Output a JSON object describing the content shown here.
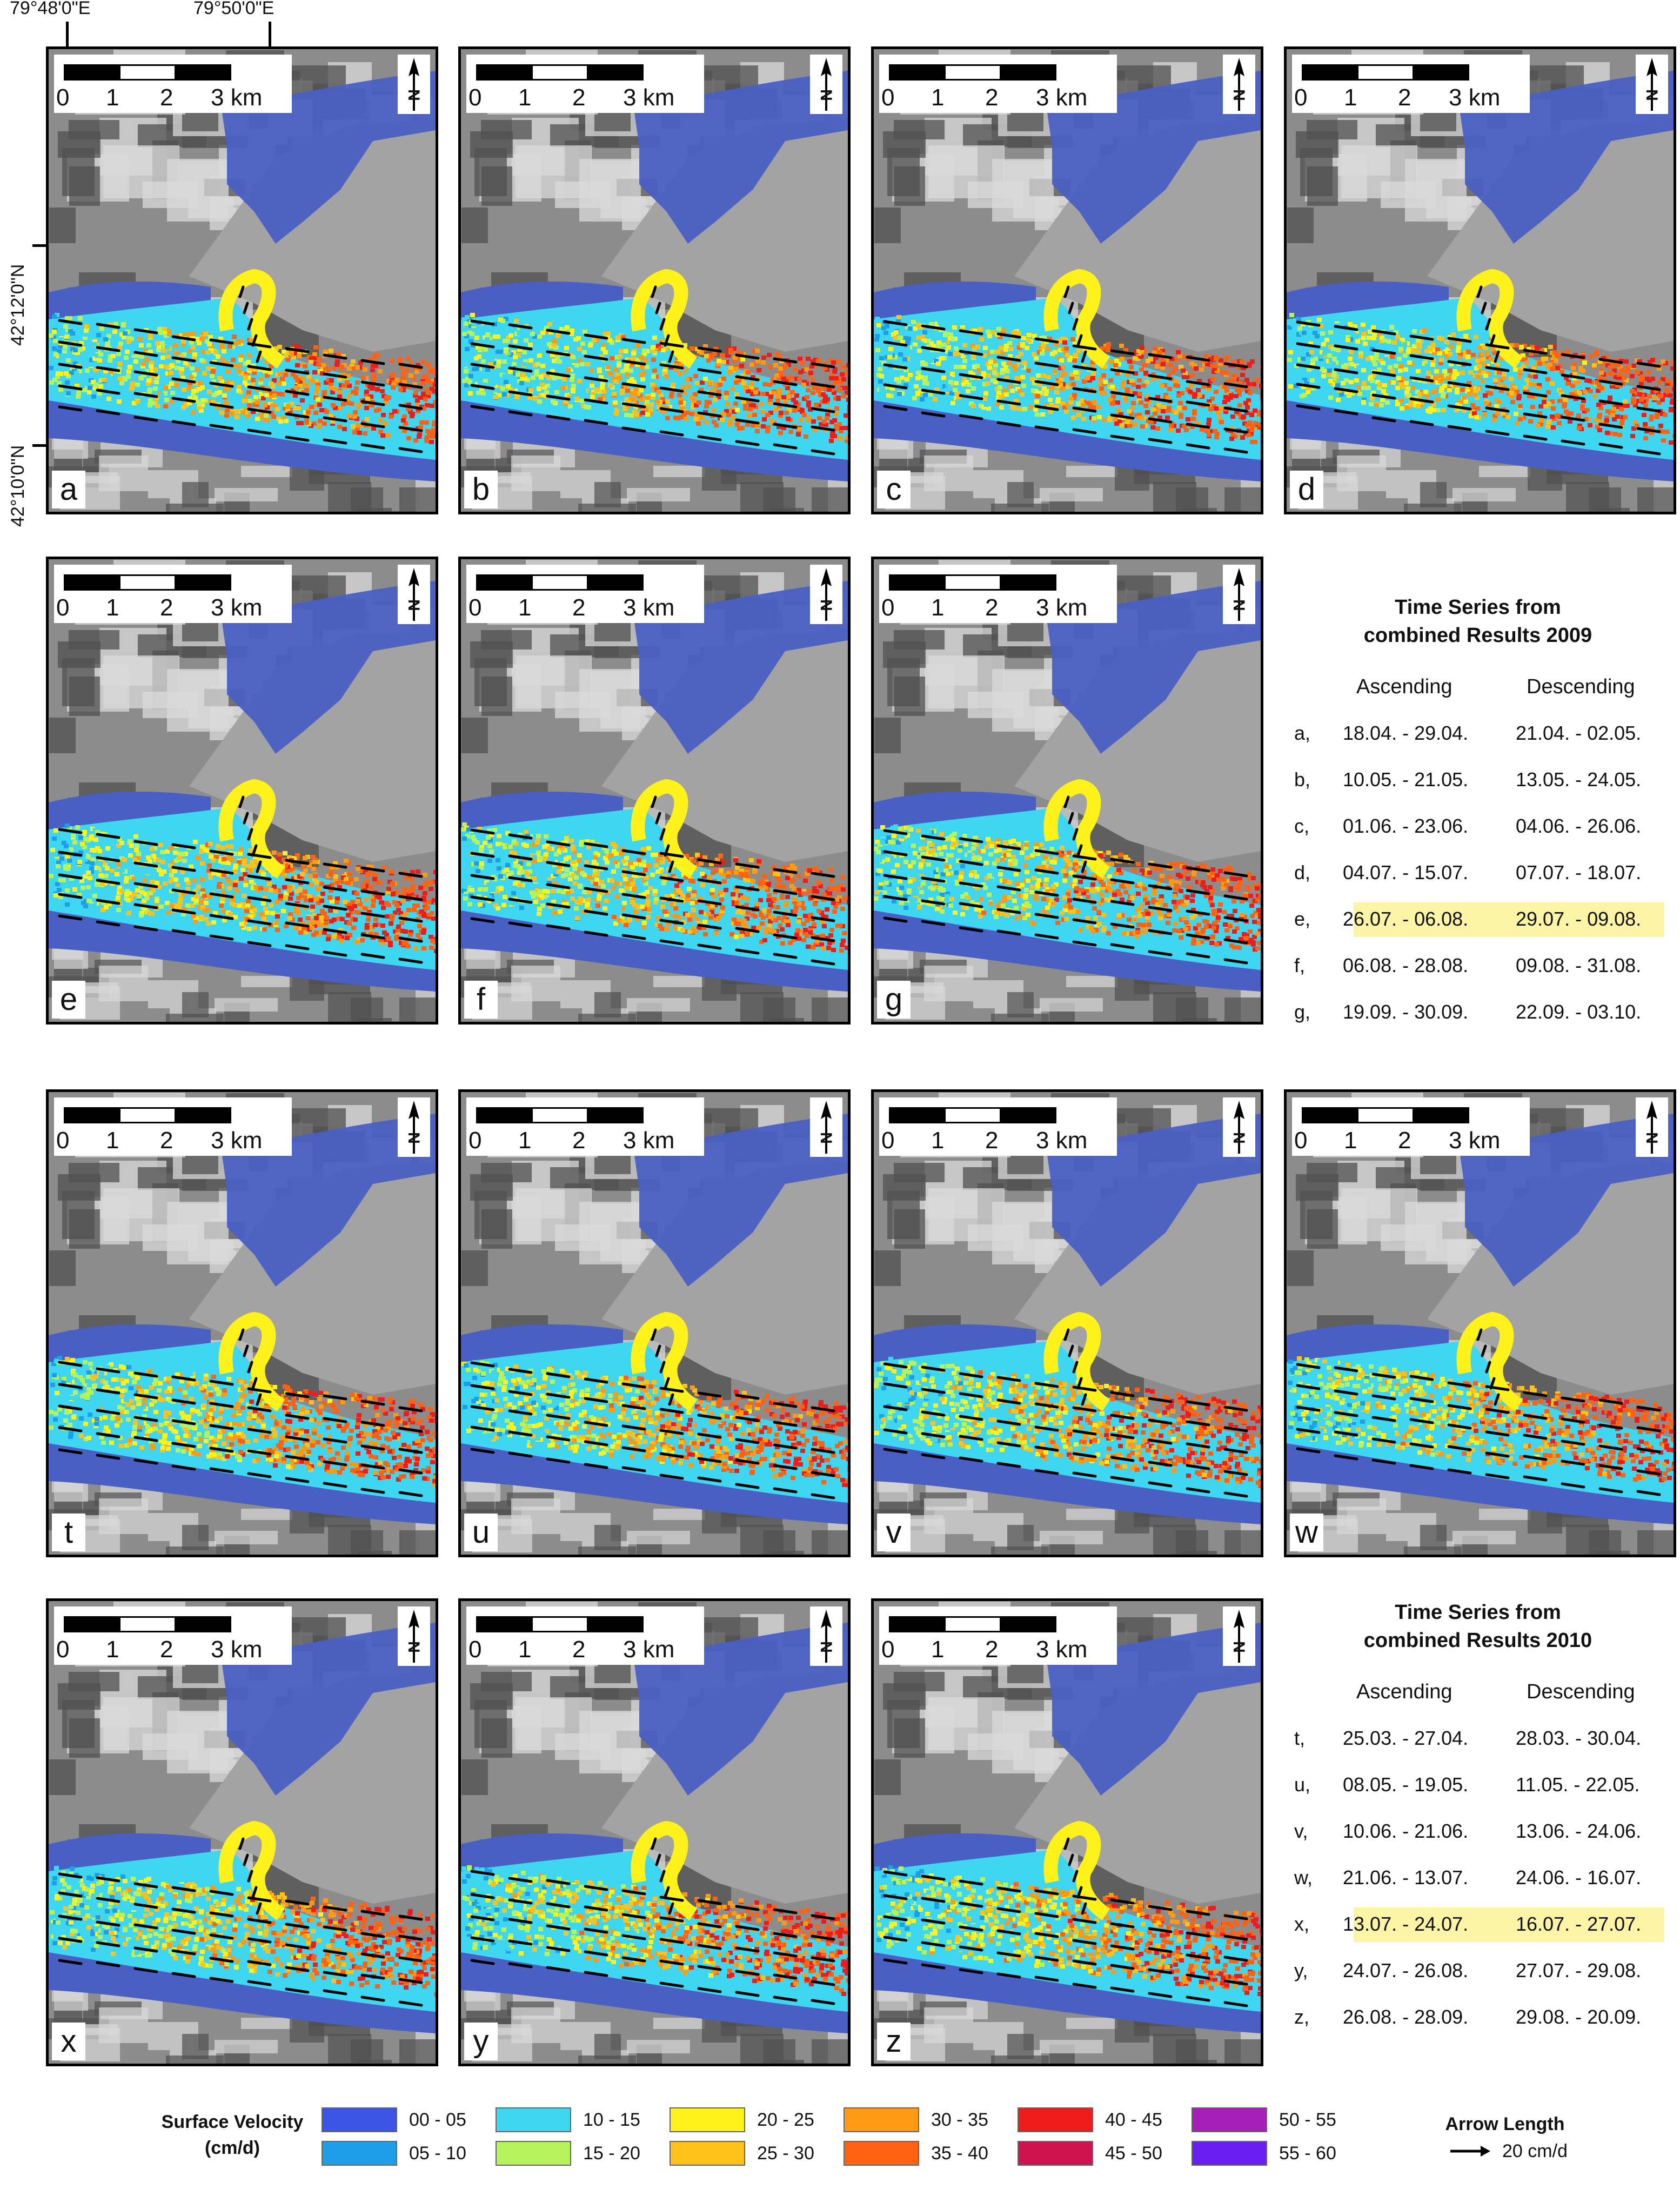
{
  "coords": {
    "lon_left": "79°48'0\"E",
    "lon_right": "79°50'0\"E",
    "lat_top": "42°12'0\"N",
    "lat_bottom": "42°10'0\"N"
  },
  "scalebar": {
    "labels": [
      "0",
      "1",
      "2",
      "3 km"
    ]
  },
  "north_label": "N",
  "panels_2009": [
    "a",
    "b",
    "c",
    "d",
    "e",
    "f",
    "g"
  ],
  "panels_2010": [
    "t",
    "u",
    "v",
    "w",
    "x",
    "y",
    "z"
  ],
  "series_2009": {
    "title_line1": "Time Series from",
    "title_line2": "combined Results 2009",
    "col_asc": "Ascending",
    "col_desc": "Descending",
    "rows": [
      {
        "id": "a,",
        "asc": "18.04. - 29.04.",
        "desc": "21.04. - 02.05."
      },
      {
        "id": "b,",
        "asc": "10.05. - 21.05.",
        "desc": "13.05. - 24.05."
      },
      {
        "id": "c,",
        "asc": "01.06. - 23.06.",
        "desc": "04.06. - 26.06."
      },
      {
        "id": "d,",
        "asc": "04.07. - 15.07.",
        "desc": "07.07. - 18.07."
      },
      {
        "id": "e,",
        "asc": "26.07. - 06.08.",
        "desc": "29.07. - 09.08."
      },
      {
        "id": "f,",
        "asc": "06.08. - 28.08.",
        "desc": "09.08. - 31.08."
      },
      {
        "id": "g,",
        "asc": "19.09. - 30.09.",
        "desc": "22.09. - 03.10."
      }
    ],
    "highlight": 4
  },
  "series_2010": {
    "title_line1": "Time Series from",
    "title_line2": "combined Results 2010",
    "col_asc": "Ascending",
    "col_desc": "Descending",
    "rows": [
      {
        "id": "t,",
        "asc": "25.03. - 27.04.",
        "desc": "28.03. - 30.04."
      },
      {
        "id": "u,",
        "asc": "08.05. - 19.05.",
        "desc": "11.05. - 22.05."
      },
      {
        "id": "v,",
        "asc": "10.06. - 21.06.",
        "desc": "13.06. - 24.06."
      },
      {
        "id": "w,",
        "asc": "21.06. - 13.07.",
        "desc": "24.06. - 16.07."
      },
      {
        "id": "x,",
        "asc": "13.07. - 24.07.",
        "desc": "16.07. - 27.07."
      },
      {
        "id": "y,",
        "asc": "24.07. - 26.08.",
        "desc": "27.07. - 29.08."
      },
      {
        "id": "z,",
        "asc": "26.08. - 28.09.",
        "desc": "29.08. - 20.09."
      }
    ],
    "highlight": 4
  },
  "legend": {
    "title_line1": "Surface Velocity",
    "title_line2": "(cm/d)",
    "classes": [
      {
        "label": "00 - 05",
        "color": "#3a55e6"
      },
      {
        "label": "05 - 10",
        "color": "#1f9ee8"
      },
      {
        "label": "10 - 15",
        "color": "#3fd6f2"
      },
      {
        "label": "15 - 20",
        "color": "#b6f25c"
      },
      {
        "label": "20 - 25",
        "color": "#fff21a"
      },
      {
        "label": "25 - 30",
        "color": "#ffc21a"
      },
      {
        "label": "30 - 35",
        "color": "#ff9a12"
      },
      {
        "label": "35 - 40",
        "color": "#ff6212"
      },
      {
        "label": "40 - 45",
        "color": "#ef1c1c"
      },
      {
        "label": "45 - 50",
        "color": "#d0124e"
      },
      {
        "label": "50 - 55",
        "color": "#a81fb8"
      },
      {
        "label": "55 - 60",
        "color": "#6b1ef0"
      }
    ],
    "arrow_title": "Arrow Length",
    "arrow_value": "20 cm/d"
  },
  "colors": {
    "relief_dark": "#505050",
    "relief_mid": "#8c8c8c",
    "relief_light": "#d9d9d9",
    "glacier_gray": "#a3a3a3",
    "background_class": "#4a5fc4",
    "highlight": "#fbf3a6"
  }
}
